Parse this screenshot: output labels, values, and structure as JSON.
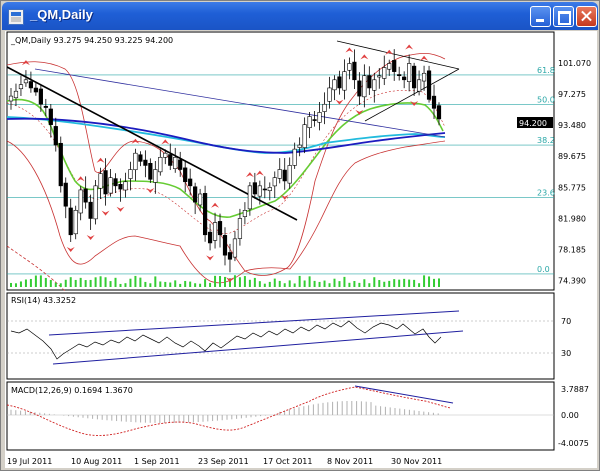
{
  "window": {
    "title": "_QM,Daily"
  },
  "main_chart": {
    "header": "_QM,Daily  93.275 94.250 93.225 94.200",
    "price_labels": [
      "101.070",
      "97.275",
      "93.480",
      "89.675",
      "85.775",
      "81.980",
      "78.185",
      "74.390"
    ],
    "current_price": "94.200",
    "fib_levels": [
      {
        "label": "61.8",
        "price": 99.6
      },
      {
        "label": "50.0",
        "price": 96.0
      },
      {
        "label": "38.2",
        "price": 91.0
      },
      {
        "label": "23.6",
        "price": 84.6
      },
      {
        "label": "0.0",
        "price": 75.2
      }
    ],
    "ylim": [
      73.6,
      104.0
    ]
  },
  "rsi_panel": {
    "header": "RSI(14) 43.3252",
    "levels": [
      "70",
      "30"
    ]
  },
  "macd_panel": {
    "header": "MACD(12,26,9) 0.1694 1.3670",
    "levels": [
      "3.7887",
      "0.00",
      "-4.0075"
    ]
  },
  "x_axis": {
    "labels": [
      "19 Jul 2011",
      "10 Aug 2011",
      "1 Sep 2011",
      "23 Sep 2011",
      "17 Oct 2011",
      "8 Nov 2011",
      "30 Nov 2011"
    ]
  },
  "chart_data": {
    "type": "candlestick",
    "title": "_QM,Daily",
    "open": 93.275,
    "high": 94.25,
    "low": 93.225,
    "close": 94.2,
    "closes": [
      97.0,
      97.6,
      98.4,
      99.0,
      98.0,
      97.5,
      96.0,
      95.6,
      93.5,
      91.0,
      86.0,
      83.5,
      80.0,
      83.0,
      85.5,
      84.0,
      82.0,
      86.0,
      87.5,
      85.0,
      87.0,
      86.0,
      85.6,
      86.5,
      88.0,
      90.0,
      89.0,
      88.5,
      86.8,
      88.0,
      89.5,
      90.0,
      88.5,
      89.5,
      88.0,
      86.5,
      86.0,
      84.0,
      85.0,
      80.0,
      79.0,
      81.5,
      80.0,
      77.5,
      77.0,
      79.5,
      82.0,
      83.0,
      86.0,
      85.0,
      86.0,
      85.5,
      85.8,
      87.0,
      88.0,
      86.6,
      88.5,
      90.5,
      91.0,
      93.5,
      94.5,
      94.0,
      95.0,
      96.0,
      98.0,
      99.0,
      98.0,
      100.0,
      101.0,
      99.0,
      97.0,
      99.5,
      98.0,
      99.0,
      99.5,
      100.5,
      101.0,
      100.0,
      99.5,
      99.0,
      101.0,
      98.0,
      99.0,
      99.8,
      96.6,
      95.5,
      94.2
    ]
  }
}
